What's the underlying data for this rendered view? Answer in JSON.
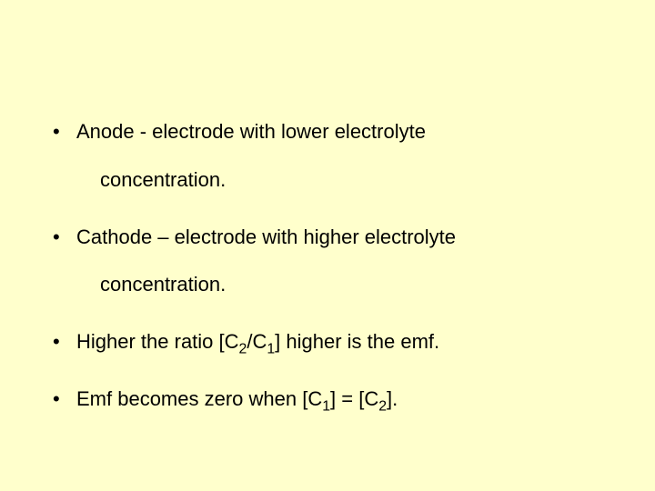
{
  "slide": {
    "background_color": "#ffffcc",
    "text_color": "#000000",
    "font_family": "Arial",
    "font_size_pt": 22,
    "bullets": [
      {
        "line1": "Anode - electrode with lower electrolyte",
        "line2": "concentration."
      },
      {
        "line1": "Cathode – electrode with higher electrolyte",
        "line2": "concentration."
      },
      {
        "prefix": "Higher the ratio [C",
        "sub1": "2",
        "mid1": "/C",
        "sub2": "1",
        "suffix": "] higher is the emf."
      },
      {
        "prefix": "Emf becomes zero when [C",
        "sub1": "1",
        "mid1": "] = [C",
        "sub2": "2",
        "suffix": "]."
      }
    ]
  }
}
